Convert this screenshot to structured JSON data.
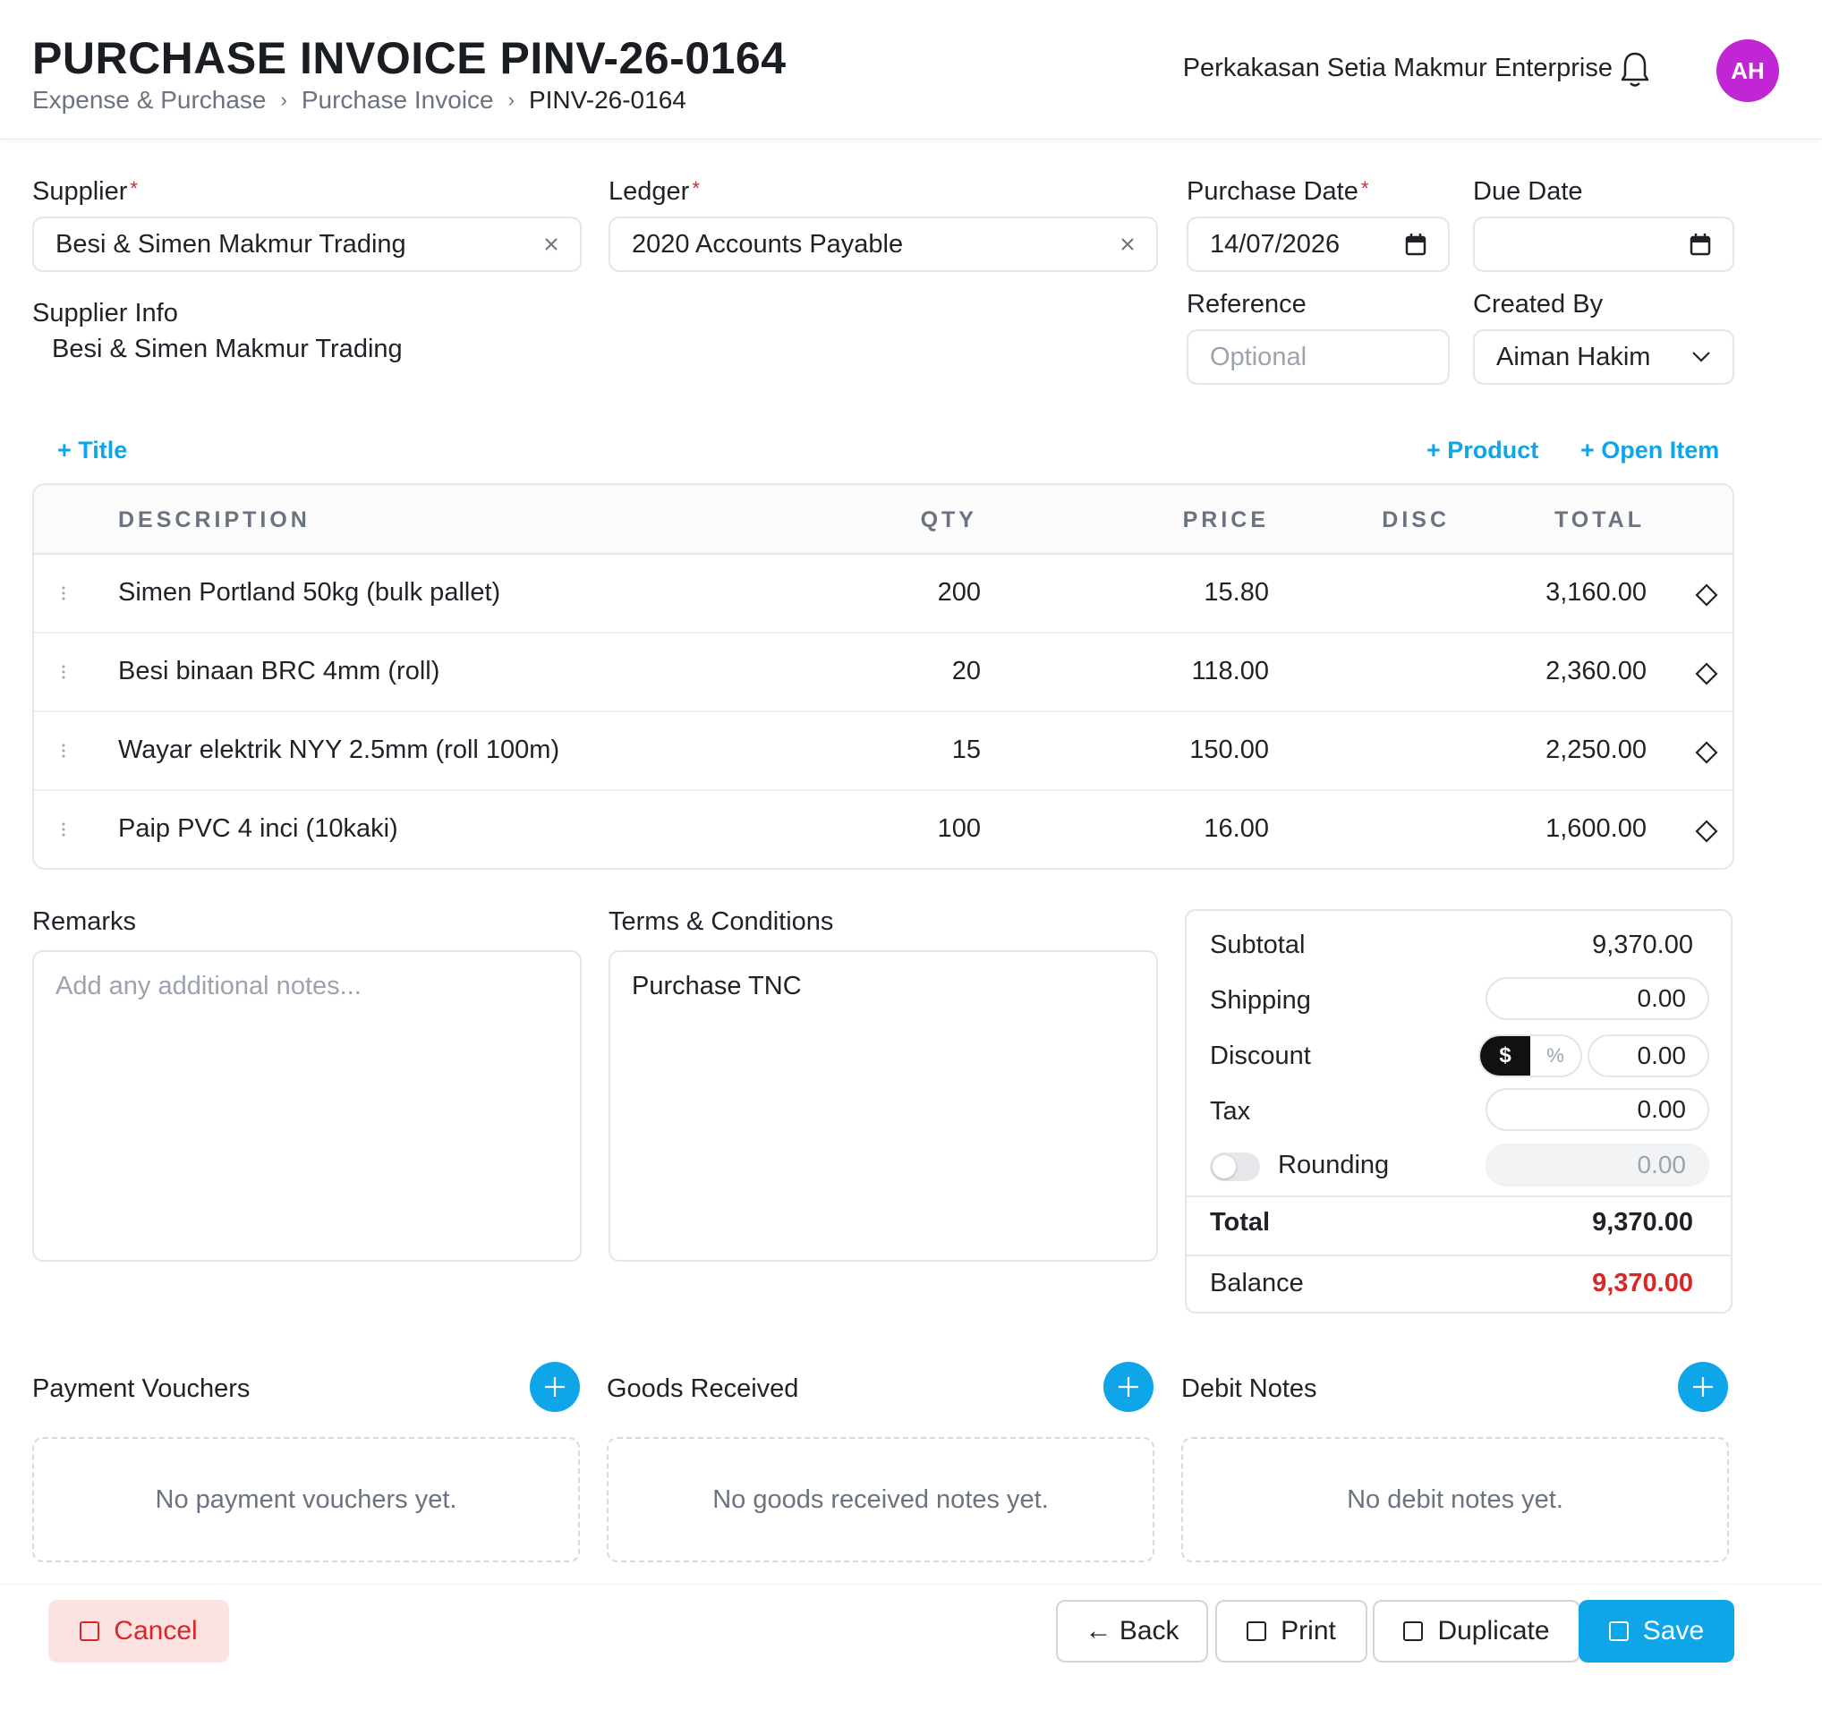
{
  "header": {
    "title": "PURCHASE INVOICE PINV-26-0164",
    "breadcrumb": [
      "Expense & Purchase",
      "Purchase Invoice",
      "PINV-26-0164"
    ],
    "company": "Perkakasan Setia Makmur Enterprise",
    "avatar_initials": "AH",
    "avatar_color": "#c026d3"
  },
  "form": {
    "supplier": {
      "label": "Supplier",
      "required": "*",
      "value": "Besi & Simen Makmur Trading"
    },
    "ledger": {
      "label": "Ledger",
      "required": "*",
      "value": "2020 Accounts Payable"
    },
    "purchase_date": {
      "label": "Purchase Date",
      "required": "*",
      "value": "14/07/2026"
    },
    "due_date": {
      "label": "Due Date",
      "value": ""
    },
    "reference": {
      "label": "Reference",
      "placeholder": "Optional",
      "value": ""
    },
    "created_by": {
      "label": "Created By",
      "value": "Aiman Hakim"
    },
    "supplier_info": {
      "label": "Supplier Info",
      "value": "Besi & Simen Makmur Trading"
    }
  },
  "actions": {
    "add_title": "+ Title",
    "add_product": "+ Product",
    "add_open_item": "+ Open Item"
  },
  "table": {
    "columns": [
      "DESCRIPTION",
      "QTY",
      "PRICE",
      "DISC",
      "TOTAL"
    ],
    "rows": [
      {
        "description": "Simen Portland 50kg (bulk pallet)",
        "qty": "200",
        "price": "15.80",
        "disc": "",
        "total": "3,160.00"
      },
      {
        "description": "Besi binaan BRC 4mm (roll)",
        "qty": "20",
        "price": "118.00",
        "disc": "",
        "total": "2,360.00"
      },
      {
        "description": "Wayar elektrik NYY 2.5mm (roll 100m)",
        "qty": "15",
        "price": "150.00",
        "disc": "",
        "total": "2,250.00"
      },
      {
        "description": "Paip PVC 4 inci (10kaki)",
        "qty": "100",
        "price": "16.00",
        "disc": "",
        "total": "1,600.00"
      }
    ]
  },
  "remarks": {
    "label": "Remarks",
    "placeholder": "Add any additional notes..."
  },
  "terms": {
    "label": "Terms & Conditions",
    "value": "Purchase TNC"
  },
  "totals": {
    "subtotal_label": "Subtotal",
    "subtotal": "9,370.00",
    "shipping_label": "Shipping",
    "shipping": "0.00",
    "discount_label": "Discount",
    "discount": "0.00",
    "discount_mode_fixed": "$",
    "discount_mode_percent": "%",
    "tax_label": "Tax",
    "tax": "0.00",
    "rounding_label": "Rounding",
    "rounding": "0.00",
    "total_label": "Total",
    "total": "9,370.00",
    "balance_label": "Balance",
    "balance": "9,370.00",
    "balance_color": "#dc2626"
  },
  "related": {
    "payment_vouchers": {
      "title": "Payment Vouchers",
      "empty": "No payment vouchers yet."
    },
    "goods_received": {
      "title": "Goods Received",
      "empty": "No goods received notes yet."
    },
    "debit_notes": {
      "title": "Debit Notes",
      "empty": "No debit notes yet."
    }
  },
  "footer": {
    "cancel": "Cancel",
    "back": "← Back",
    "print": "Print",
    "duplicate": "Duplicate",
    "save": "Save"
  },
  "colors": {
    "accent": "#0ea5e9",
    "danger": "#dc2626"
  },
  "icons": [
    "bell-icon",
    "close-icon",
    "calendar-icon",
    "chevron-down-icon",
    "drag-handle-icon",
    "diamond-icon",
    "plus-icon"
  ]
}
